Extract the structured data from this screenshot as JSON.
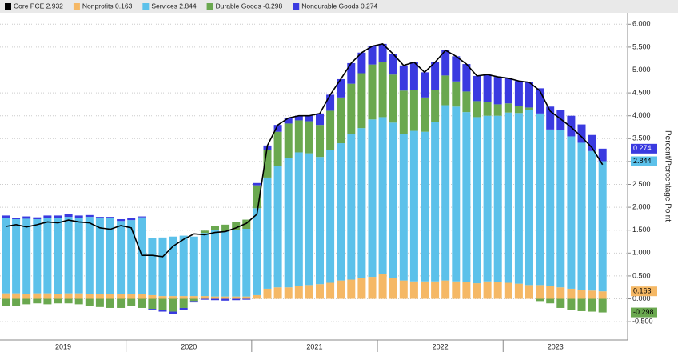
{
  "chart_data": {
    "type": "stacked_bar_line",
    "axis_label": "Percent/Percentage Point",
    "categories": [
      null,
      null,
      null,
      null,
      null,
      null,
      null,
      null,
      null,
      null,
      null,
      null,
      null,
      null,
      null,
      null,
      null,
      null,
      null,
      null,
      null,
      null,
      null,
      null,
      null,
      null,
      null,
      null,
      null,
      null,
      null,
      null,
      null,
      null,
      null,
      null,
      null,
      null,
      null,
      null,
      null,
      null,
      null,
      null,
      null,
      null,
      null,
      null,
      null,
      null,
      null,
      null,
      null,
      null,
      null,
      null,
      null,
      null
    ],
    "year_labels": [
      "2019",
      "2020",
      "2021",
      "2022",
      "2023"
    ],
    "ylim": [
      -0.9,
      6.25
    ],
    "yticks": [
      {
        "value": -0.5,
        "label": "-0.500"
      },
      {
        "value": 0,
        "label": "0.000"
      },
      {
        "value": 0.5,
        "label": "0.500"
      },
      {
        "value": 1,
        "label": "1.000"
      },
      {
        "value": 1.5,
        "label": "1.500"
      },
      {
        "value": 2,
        "label": "2.000"
      },
      {
        "value": 2.5,
        "label": "2.500"
      },
      {
        "value": 3,
        "label": "3.000"
      },
      {
        "value": 3.5,
        "label": "3.500"
      },
      {
        "value": 4,
        "label": "4.000"
      },
      {
        "value": 4.5,
        "label": "4.500"
      },
      {
        "value": 5,
        "label": "5.000"
      },
      {
        "value": 5.5,
        "label": "5.500"
      },
      {
        "value": 6,
        "label": "6.000"
      }
    ],
    "grid": true,
    "line": {
      "name": "Core PCE",
      "last_label": "2.932",
      "color": "#000000",
      "values": [
        1.58,
        1.62,
        1.57,
        1.62,
        1.68,
        1.66,
        1.72,
        1.68,
        1.66,
        1.55,
        1.52,
        1.6,
        1.55,
        0.95,
        0.95,
        0.92,
        1.15,
        1.3,
        1.42,
        1.4,
        1.45,
        1.47,
        1.55,
        1.65,
        1.85,
        3.35,
        3.8,
        3.95,
        4.0,
        4.0,
        4.05,
        4.46,
        4.8,
        5.15,
        5.38,
        5.52,
        5.57,
        5.35,
        5.1,
        5.17,
        4.95,
        5.17,
        5.43,
        5.3,
        5.13,
        4.87,
        4.9,
        4.85,
        4.82,
        4.76,
        4.73,
        4.55,
        4.1,
        3.93,
        3.75,
        3.54,
        3.3,
        2.932
      ]
    },
    "series": [
      {
        "name": "Nonprofits",
        "last_label": "0.163",
        "color": "#f5b865",
        "values": [
          0.12,
          0.12,
          0.11,
          0.12,
          0.12,
          0.11,
          0.12,
          0.12,
          0.11,
          0.1,
          0.1,
          0.1,
          0.1,
          0.1,
          0.08,
          0.06,
          0.06,
          0.06,
          0.06,
          0.06,
          0.05,
          0.05,
          0.05,
          0.05,
          0.08,
          0.22,
          0.25,
          0.25,
          0.28,
          0.3,
          0.32,
          0.35,
          0.4,
          0.42,
          0.45,
          0.48,
          0.55,
          0.45,
          0.4,
          0.38,
          0.38,
          0.38,
          0.4,
          0.38,
          0.36,
          0.34,
          0.38,
          0.36,
          0.35,
          0.33,
          0.3,
          0.3,
          0.28,
          0.25,
          0.22,
          0.2,
          0.18,
          0.163
        ]
      },
      {
        "name": "Services",
        "last_label": "2.844",
        "color": "#5cc1ea",
        "values": [
          1.65,
          1.62,
          1.64,
          1.62,
          1.64,
          1.66,
          1.67,
          1.65,
          1.68,
          1.66,
          1.66,
          1.6,
          1.62,
          1.68,
          1.25,
          1.28,
          1.3,
          1.32,
          1.3,
          1.38,
          1.45,
          1.42,
          1.45,
          1.48,
          1.9,
          2.43,
          2.65,
          2.83,
          2.92,
          2.88,
          2.78,
          2.91,
          3.0,
          3.18,
          3.28,
          3.44,
          3.42,
          3.4,
          3.2,
          3.29,
          3.27,
          3.49,
          3.83,
          3.82,
          3.72,
          3.63,
          3.62,
          3.64,
          3.72,
          3.73,
          3.83,
          3.75,
          3.42,
          3.43,
          3.33,
          3.21,
          3.05,
          2.844
        ]
      },
      {
        "name": "Durable Goods",
        "last_label": "-0.298",
        "color": "#6aa84f",
        "values": [
          -0.15,
          -0.15,
          -0.12,
          -0.1,
          -0.12,
          -0.1,
          -0.1,
          -0.12,
          -0.15,
          -0.18,
          -0.2,
          -0.2,
          -0.15,
          -0.2,
          -0.22,
          -0.25,
          -0.28,
          -0.2,
          -0.05,
          0.05,
          0.1,
          0.15,
          0.18,
          0.2,
          0.5,
          0.6,
          0.75,
          0.75,
          0.7,
          0.7,
          0.7,
          0.85,
          1.0,
          1.1,
          1.2,
          1.2,
          1.2,
          1.05,
          0.95,
          0.9,
          0.75,
          0.7,
          0.65,
          0.55,
          0.45,
          0.35,
          0.3,
          0.25,
          0.2,
          0.15,
          0.05,
          -0.05,
          -0.1,
          -0.2,
          -0.25,
          -0.27,
          -0.28,
          -0.298
        ]
      },
      {
        "name": "Nondurable Goods",
        "last_label": "0.274",
        "color": "#3a3ae0",
        "values": [
          0.05,
          0.03,
          0.05,
          0.04,
          0.06,
          0.05,
          0.06,
          0.05,
          0.04,
          0.03,
          0.03,
          0.04,
          0.04,
          0.02,
          -0.02,
          -0.03,
          -0.05,
          -0.04,
          -0.03,
          -0.02,
          -0.03,
          -0.04,
          -0.03,
          -0.02,
          0.05,
          0.1,
          0.15,
          0.12,
          0.1,
          0.12,
          0.25,
          0.35,
          0.4,
          0.45,
          0.45,
          0.4,
          0.4,
          0.45,
          0.55,
          0.6,
          0.55,
          0.6,
          0.55,
          0.55,
          0.6,
          0.55,
          0.6,
          0.6,
          0.55,
          0.55,
          0.55,
          0.55,
          0.5,
          0.45,
          0.45,
          0.4,
          0.35,
          0.274
        ]
      }
    ]
  }
}
